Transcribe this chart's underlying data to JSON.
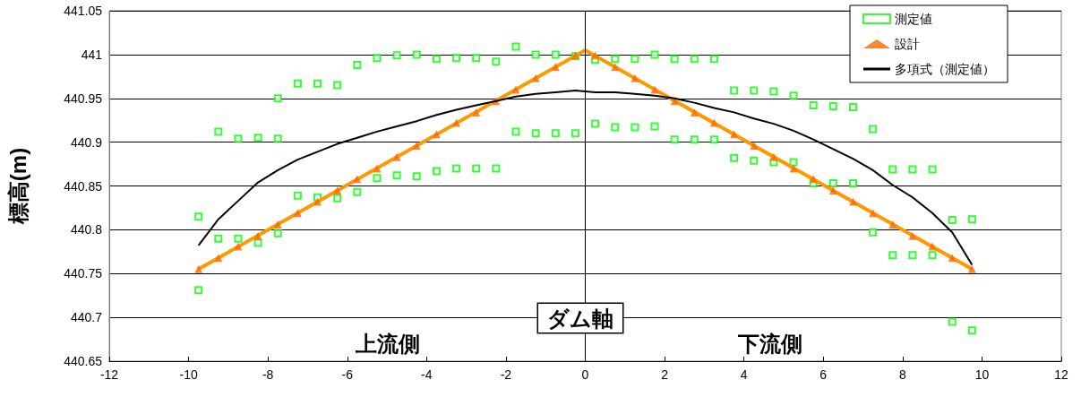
{
  "chart_data": {
    "type": "scatter",
    "ylabel": "標高(m)",
    "xlim": [
      -12,
      12
    ],
    "xticks": [
      -12,
      -10,
      -8,
      -6,
      -4,
      -2,
      0,
      2,
      4,
      6,
      8,
      10,
      12
    ],
    "ylim": [
      440.65,
      441.05
    ],
    "yticks": [
      440.65,
      440.7,
      440.75,
      440.8,
      440.85,
      440.9,
      440.95,
      441,
      441.05
    ],
    "grid": "y",
    "legend": "top right",
    "ref_lines": [
      {
        "axis": "x",
        "value": 0,
        "color": "#000000"
      }
    ],
    "annotations": [
      "上流側",
      "下流側",
      "ダム軸"
    ],
    "series": [
      {
        "name": "測定値",
        "marker": "square",
        "color": "#00ff00",
        "x": [
          -9.75,
          -9.75,
          -9.25,
          -9.25,
          -8.75,
          -8.75,
          -8.25,
          -8.25,
          -7.75,
          -7.75,
          -7.75,
          -7.25,
          -7.25,
          -6.75,
          -6.75,
          -6.25,
          -6.25,
          -5.75,
          -5.75,
          -5.25,
          -5.25,
          -4.75,
          -4.75,
          -4.25,
          -4.25,
          -3.75,
          -3.75,
          -3.25,
          -3.25,
          -2.75,
          -2.75,
          -2.25,
          -2.25,
          -1.75,
          -1.75,
          -1.25,
          -1.25,
          -0.75,
          -0.75,
          -0.25,
          -0.25,
          0.25,
          0.25,
          0.75,
          0.75,
          1.25,
          1.25,
          1.75,
          1.75,
          2.25,
          2.25,
          2.75,
          2.75,
          3.25,
          3.25,
          3.75,
          3.75,
          4.25,
          4.25,
          4.75,
          4.75,
          5.25,
          5.25,
          5.75,
          5.75,
          6.25,
          6.25,
          6.75,
          6.75,
          7.25,
          7.25,
          7.75,
          7.75,
          8.25,
          8.25,
          8.75,
          8.75,
          9.25,
          9.25,
          9.75,
          9.75
        ],
        "values": [
          440.815,
          440.731,
          440.912,
          440.79,
          440.904,
          440.79,
          440.905,
          440.785,
          440.95,
          440.904,
          440.796,
          440.967,
          440.839,
          440.967,
          440.837,
          440.965,
          440.836,
          440.988,
          440.843,
          440.996,
          440.859,
          440.999,
          440.862,
          441.0,
          440.861,
          440.995,
          440.867,
          440.996,
          440.87,
          440.996,
          440.87,
          440.992,
          440.87,
          441.009,
          440.912,
          441.0,
          440.91,
          441.0,
          440.91,
          440.998,
          440.91,
          440.994,
          440.921,
          440.995,
          440.917,
          440.995,
          440.917,
          441.0,
          440.918,
          440.995,
          440.903,
          440.995,
          440.903,
          440.995,
          440.903,
          440.959,
          440.882,
          440.959,
          440.879,
          440.958,
          440.877,
          440.953,
          440.877,
          440.942,
          440.853,
          440.941,
          440.853,
          440.94,
          440.853,
          440.915,
          440.797,
          440.869,
          440.771,
          440.869,
          440.771,
          440.869,
          440.771,
          440.811,
          440.695,
          440.812,
          440.685
        ]
      },
      {
        "name": "設計",
        "type": "scatter",
        "marker": "triangle",
        "color": "#ff6600",
        "x": [
          -9.75,
          -9.25,
          -8.75,
          -8.25,
          -7.75,
          -7.25,
          -6.75,
          -6.25,
          -5.75,
          -5.25,
          -4.75,
          -4.25,
          -3.75,
          -3.25,
          -2.75,
          -2.25,
          -1.75,
          -1.25,
          -0.75,
          -0.25,
          0.25,
          0.75,
          1.25,
          1.75,
          2.25,
          2.75,
          3.25,
          3.75,
          4.25,
          4.75,
          5.25,
          5.75,
          6.25,
          6.75,
          7.25,
          7.75,
          8.25,
          8.75,
          9.25,
          9.75
        ],
        "values": [
          440.755,
          440.768,
          440.781,
          440.793,
          440.806,
          440.819,
          440.832,
          440.845,
          440.858,
          440.87,
          440.883,
          440.896,
          440.909,
          440.922,
          440.934,
          440.947,
          440.96,
          440.973,
          440.986,
          440.999,
          440.999,
          440.986,
          440.973,
          440.96,
          440.947,
          440.934,
          440.922,
          440.909,
          440.896,
          440.883,
          440.87,
          440.858,
          440.845,
          440.832,
          440.819,
          440.806,
          440.793,
          440.781,
          440.768,
          440.755
        ]
      },
      {
        "type": "line",
        "marker": "none",
        "color": "#ff9900",
        "x": [
          -9.75,
          0,
          9.75
        ],
        "values": [
          440.755,
          441.005,
          440.755
        ]
      },
      {
        "name": "多項式（測定値）",
        "type": "line",
        "marker": "none",
        "color": "#000000",
        "x": [
          -9.75,
          -9.25,
          -8.75,
          -8.25,
          -7.75,
          -7.25,
          -6.75,
          -6.25,
          -5.75,
          -5.25,
          -4.75,
          -4.25,
          -3.75,
          -3.25,
          -2.75,
          -2.25,
          -1.75,
          -1.25,
          -0.75,
          -0.25,
          0.25,
          0.75,
          1.25,
          1.75,
          2.25,
          2.75,
          3.25,
          3.75,
          4.25,
          4.75,
          5.25,
          5.75,
          6.25,
          6.75,
          7.25,
          7.75,
          8.25,
          8.75,
          9.25,
          9.75
        ],
        "values": [
          440.782,
          440.812,
          440.833,
          440.854,
          440.868,
          440.88,
          440.889,
          440.898,
          440.905,
          440.912,
          440.918,
          440.924,
          440.931,
          440.937,
          440.942,
          440.947,
          440.952,
          440.955,
          440.957,
          440.959,
          440.957,
          440.957,
          440.955,
          440.953,
          440.95,
          440.945,
          440.939,
          440.934,
          440.927,
          440.921,
          440.913,
          440.903,
          440.892,
          440.881,
          440.868,
          440.851,
          440.837,
          440.819,
          440.797,
          440.76
        ]
      }
    ]
  }
}
